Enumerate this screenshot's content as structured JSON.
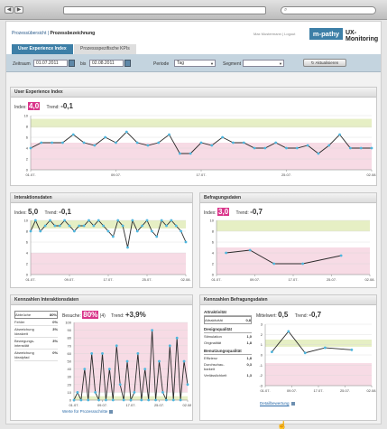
{
  "browser": {
    "back_icon": "◀",
    "forward_icon": "▶",
    "search_icon": "⌕"
  },
  "header": {
    "crumb_link": "Prozessübersicht",
    "crumb_sep": " | ",
    "crumb_current": "Prozessbezeichnung",
    "user_text": "Max Mustermann | Logout",
    "logo": "m-pathy",
    "brand": "UX-Monitoring"
  },
  "tabs": [
    {
      "label": "User Experience Index"
    },
    {
      "label": "Prozessspezifische KPIs"
    }
  ],
  "filters": {
    "zeitraum_label": "Zeitraum",
    "from": "01.07.2011",
    "bis_label": "bis",
    "to": "02.08.2011",
    "periode_label": "Periode",
    "periode_value": "Tag",
    "segment_label": "Segment",
    "segment_value": "",
    "update_button": "Aktualisieren"
  },
  "uxi": {
    "title": "User Experience Index",
    "index_label": "Index:",
    "index_value": "4,0",
    "trend_label": "Trend:",
    "trend_value": "-0,1",
    "chart_data": {
      "type": "line",
      "x": [
        "01.07.",
        "02.07.",
        "03.07.",
        "04.07.",
        "05.07.",
        "06.07.",
        "07.07.",
        "08.07.",
        "09.07.",
        "10.07.",
        "11.07.",
        "12.07.",
        "13.07.",
        "14.07.",
        "15.07.",
        "16.07.",
        "17.07.",
        "18.07.",
        "19.07.",
        "20.07.",
        "21.07.",
        "22.07.",
        "23.07.",
        "24.07.",
        "25.07.",
        "26.07.",
        "27.07.",
        "28.07.",
        "29.07.",
        "30.07.",
        "31.07.",
        "01.08.",
        "02.08."
      ],
      "values": [
        4,
        5,
        5,
        5,
        6.5,
        5,
        4.5,
        6,
        5,
        7,
        5,
        4.5,
        5,
        6.5,
        3,
        3,
        5,
        4.5,
        6,
        5,
        5,
        4,
        4,
        5,
        4,
        4,
        4.5,
        3,
        4.5,
        6.5,
        4,
        4,
        4
      ],
      "xticks": [
        "01.07.",
        "09.07.",
        "17.07.",
        "25.07.",
        "02.08."
      ],
      "yticks": [
        "0",
        "2",
        "4",
        "6",
        "8",
        "10"
      ],
      "ylim": [
        0,
        10
      ],
      "good_band": [
        7.8,
        9.4
      ],
      "bad_band": [
        0,
        5
      ]
    }
  },
  "interaction": {
    "title": "Interaktionsdaten",
    "index_label": "Index:",
    "index_value": "5,0",
    "trend_label": "Trend:",
    "trend_value": "-0,1",
    "chart_data": {
      "type": "line",
      "x": [
        "01.07.",
        "02.07.",
        "03.07.",
        "04.07.",
        "05.07.",
        "06.07.",
        "07.07.",
        "08.07.",
        "09.07.",
        "10.07.",
        "11.07.",
        "12.07.",
        "13.07.",
        "14.07.",
        "15.07.",
        "16.07.",
        "17.07.",
        "18.07.",
        "19.07.",
        "20.07.",
        "21.07.",
        "22.07.",
        "23.07.",
        "24.07.",
        "25.07.",
        "26.07.",
        "27.07.",
        "28.07.",
        "29.07.",
        "30.07.",
        "31.07.",
        "01.08.",
        "02.08."
      ],
      "values": [
        8,
        10,
        8,
        9,
        10,
        9,
        9,
        10,
        9,
        8,
        9,
        9,
        10,
        9,
        10,
        9,
        8,
        7,
        10,
        9,
        5,
        10,
        8,
        9,
        10,
        8,
        7,
        10,
        9,
        10,
        9,
        8,
        6
      ],
      "xticks": [
        "01.07.",
        "09.07.",
        "17.07.",
        "25.07.",
        "02.08."
      ],
      "yticks": [
        "0",
        "2",
        "4",
        "6",
        "8",
        "10"
      ],
      "ylim": [
        0,
        10
      ],
      "good_band": [
        8.5,
        10
      ],
      "bad_band": [
        0,
        4
      ]
    }
  },
  "survey": {
    "title": "Befragungsdaten",
    "index_label": "Index:",
    "index_value": "3,0",
    "trend_label": "Trend:",
    "trend_value": "-0,7",
    "chart_data": {
      "type": "line",
      "x": [
        "01.07.",
        "09.07.",
        "17.07.",
        "25.07.",
        "02.08."
      ],
      "points": [
        [
          2,
          4
        ],
        [
          7,
          4.5
        ],
        [
          12,
          2
        ],
        [
          18,
          2
        ],
        [
          26,
          3.5
        ]
      ],
      "xmax": 32,
      "xticks": [
        "01.07.",
        "09.07.",
        "17.07.",
        "25.07.",
        "02.08."
      ],
      "yticks": [
        "0",
        "2",
        "4",
        "6",
        "8",
        "10"
      ],
      "ylim": [
        0,
        10
      ],
      "good_band": [
        8,
        10
      ],
      "bad_band": [
        0,
        5
      ]
    }
  },
  "kpi_interaction": {
    "title": "Kennzahlen Interaktionsdaten",
    "list": [
      {
        "label": "Abbrüche",
        "value": "80%"
      },
      {
        "label": "Fehler",
        "value": "0%"
      },
      {
        "label": "Abweichung Idealzeit",
        "value": "3%"
      },
      {
        "label": "Bewegungs-intensität",
        "value": "3%"
      },
      {
        "label": "Abweichung Idealpfad",
        "value": "0%"
      }
    ],
    "visits_label": "Besuche:",
    "visits_value": "80%",
    "visits_count": "(4)",
    "trend_label": "Trend:",
    "trend_value": "+3,9%",
    "link": "Werte für Prozessschritte",
    "chart_data": {
      "type": "line",
      "values": [
        0,
        10,
        0,
        40,
        0,
        60,
        10,
        0,
        60,
        0,
        40,
        0,
        70,
        20,
        0,
        50,
        0,
        10,
        60,
        0,
        40,
        0,
        90,
        0,
        50,
        10,
        0,
        70,
        0,
        80,
        0,
        50,
        20
      ],
      "xticks": [
        "01.07.",
        "09.07.",
        "17.07.",
        "25.07.",
        "02.08."
      ],
      "yticks": [
        "0",
        "10",
        "20",
        "30",
        "40",
        "50",
        "60",
        "70",
        "80",
        "90",
        "100"
      ],
      "ylim": [
        0,
        100
      ],
      "good_band": [
        0,
        5
      ],
      "bad_band": [
        10,
        100
      ]
    }
  },
  "kpi_survey": {
    "title": "Kennzahlen Befragungsdaten",
    "attr_section": "Attraktivität",
    "attr_row": {
      "label": "Attraktivität",
      "value": "0,8"
    },
    "design_section": "Designqualität",
    "design_rows": [
      {
        "label": "Stimulation",
        "value": "1,0"
      },
      {
        "label": "Originalität",
        "value": "1,8"
      }
    ],
    "usability_section": "Benutzungsqualität",
    "usability_rows": [
      {
        "label": "Effizienz",
        "value": "1,8"
      },
      {
        "label": "Durchschau-barkeit",
        "value": "0,3"
      },
      {
        "label": "Verlässlichkeit",
        "value": "1,3"
      }
    ],
    "mean_label": "Mittelwert:",
    "mean_value": "0,5",
    "trend_label": "Trend:",
    "trend_value": "-0,7",
    "link": "Detailbewertung",
    "chart_data": {
      "type": "line",
      "points": [
        [
          2,
          0.3
        ],
        [
          7,
          2.3
        ],
        [
          12,
          0.2
        ],
        [
          18,
          0.7
        ],
        [
          26,
          0.5
        ]
      ],
      "xmax": 32,
      "xticks": [
        "01.07.",
        "09.07.",
        "17.07.",
        "25.07.",
        "02.08."
      ],
      "yticks": [
        "-3",
        "-2",
        "-1",
        "0",
        "1",
        "2",
        "3"
      ],
      "ylim": [
        -3,
        3
      ],
      "good_band": [
        0.8,
        1.5
      ],
      "bad_band": [
        -3,
        -0.8
      ]
    }
  }
}
